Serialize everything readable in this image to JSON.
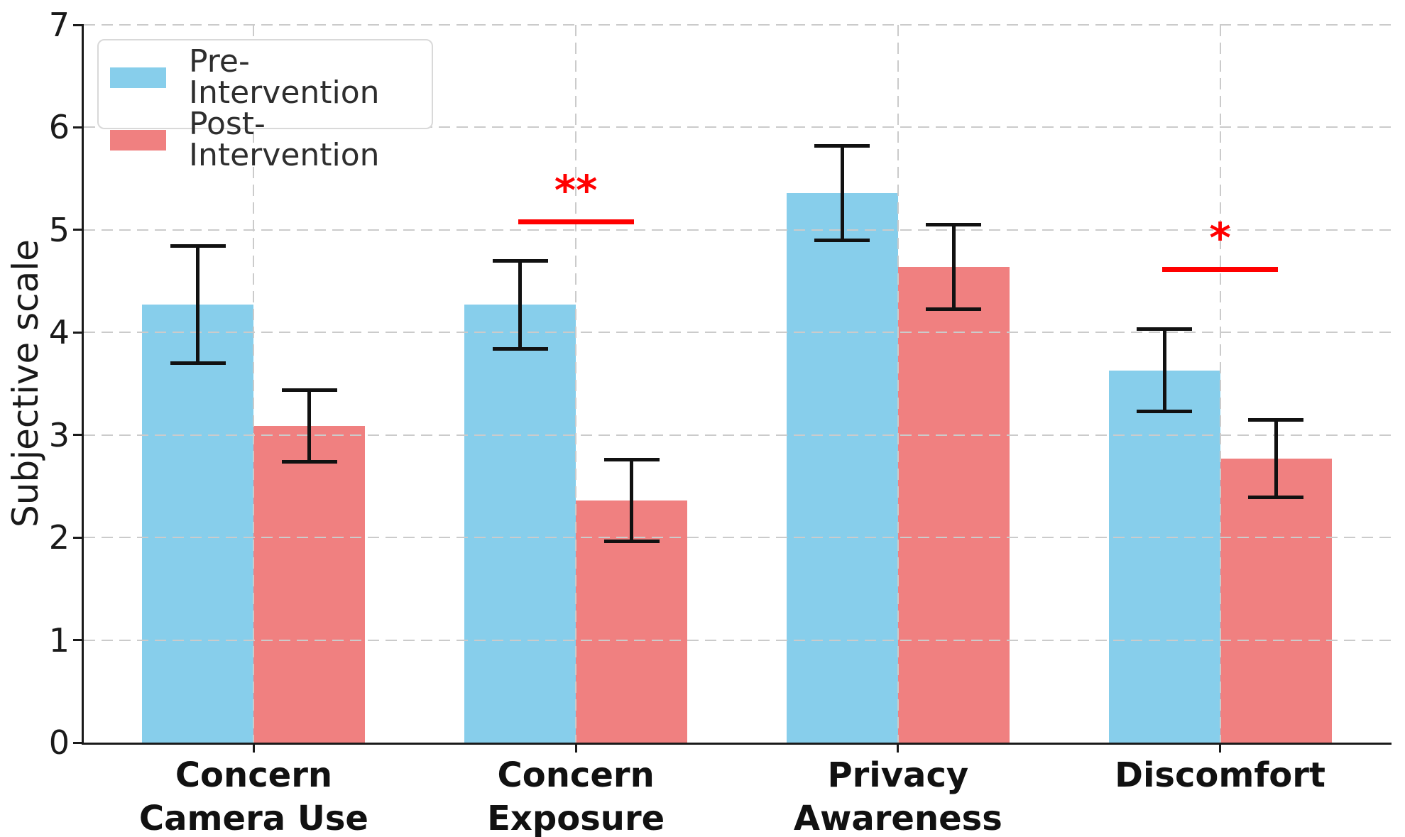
{
  "chart_data": {
    "type": "bar",
    "title": "",
    "ylabel": "Subjective scale",
    "xlabel": "",
    "ylim": [
      0,
      7
    ],
    "yticks": [
      0,
      1,
      2,
      3,
      4,
      5,
      6,
      7
    ],
    "grid": true,
    "legend": {
      "position": "upper-left",
      "entries": [
        "Pre-Intervention",
        "Post-Intervention"
      ]
    },
    "categories": [
      {
        "label_lines": [
          "Concern",
          "Camera Use"
        ]
      },
      {
        "label_lines": [
          "Concern",
          "Exposure"
        ]
      },
      {
        "label_lines": [
          "Privacy",
          "Awareness"
        ]
      },
      {
        "label_lines": [
          "Discomfort"
        ]
      }
    ],
    "series": [
      {
        "name": "Pre-Intervention",
        "color": "#87CEEB",
        "values": [
          4.27,
          4.27,
          5.36,
          3.63
        ],
        "errors": [
          0.57,
          0.43,
          0.46,
          0.4
        ]
      },
      {
        "name": "Post-Intervention",
        "color": "#F08080",
        "values": [
          3.09,
          2.36,
          4.64,
          2.77
        ],
        "errors": [
          0.35,
          0.4,
          0.41,
          0.38
        ]
      }
    ],
    "significance_markers": [
      {
        "category_index": 1,
        "label": "**",
        "line_y": 5.1
      },
      {
        "category_index": 3,
        "label": "*",
        "line_y": 4.64
      }
    ],
    "style": {
      "significance_color": "#FF0000",
      "error_bar_color": "#111111",
      "grid_color": "#CBCBCB",
      "axis_color": "#1A1A1A",
      "text_color": "#1A1A1A",
      "background": "#FFFFFF"
    }
  }
}
